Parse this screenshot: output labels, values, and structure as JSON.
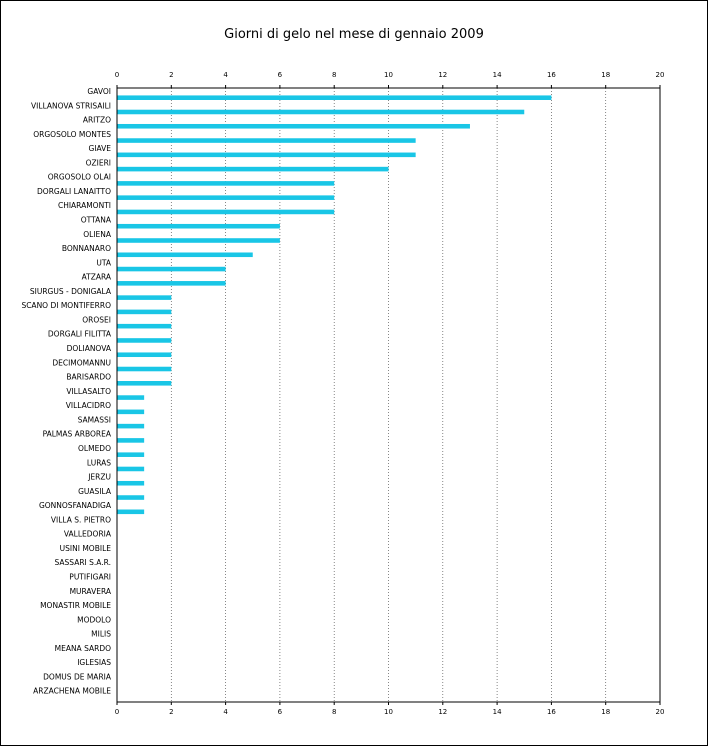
{
  "chart_data": {
    "type": "bar",
    "orientation": "horizontal",
    "title": "Giorni di gelo nel mese di gennaio 2009",
    "xlabel": "",
    "ylabel": "",
    "xlim": [
      0,
      20
    ],
    "xticks": [
      "0",
      "2",
      "4",
      "6",
      "8",
      "10",
      "12",
      "14",
      "16",
      "18",
      "20"
    ],
    "grid": "vertical-dotted",
    "bar_color": "#19c6e6",
    "categories": [
      "GAVOI",
      "VILLANOVA STRISAILI",
      "ARITZO",
      "ORGOSOLO MONTES",
      "GIAVE",
      "OZIERI",
      "ORGOSOLO OLAI",
      "DORGALI LANAITTO",
      "CHIARAMONTI",
      "OTTANA",
      "OLIENA",
      "BONNANARO",
      "UTA",
      "ATZARA",
      "SIURGUS - DONIGALA",
      "SCANO DI MONTIFERRO",
      "OROSEI",
      "DORGALI FILITTA",
      "DOLIANOVA",
      "DECIMOMANNU",
      "BARISARDO",
      "VILLASALTO",
      "VILLACIDRO",
      "SAMASSI",
      "PALMAS ARBOREA",
      "OLMEDO",
      "LURAS",
      "JERZU",
      "GUASILA",
      "GONNOSFANADIGA",
      "VILLA S. PIETRO",
      "VALLEDORIA",
      "USINI MOBILE",
      "SASSARI S.A.R.",
      "PUTIFIGARI",
      "MURAVERA",
      "MONASTIR MOBILE",
      "MODOLO",
      "MILIS",
      "MEANA SARDO",
      "IGLESIAS",
      "DOMUS DE MARIA",
      "ARZACHENA MOBILE"
    ],
    "values": [
      16,
      15,
      13,
      11,
      11,
      10,
      8,
      8,
      8,
      6,
      6,
      5,
      4,
      4,
      2,
      2,
      2,
      2,
      2,
      2,
      2,
      1,
      1,
      1,
      1,
      1,
      1,
      1,
      1,
      1,
      0,
      0,
      0,
      0,
      0,
      0,
      0,
      0,
      0,
      0,
      0,
      0,
      0
    ]
  }
}
